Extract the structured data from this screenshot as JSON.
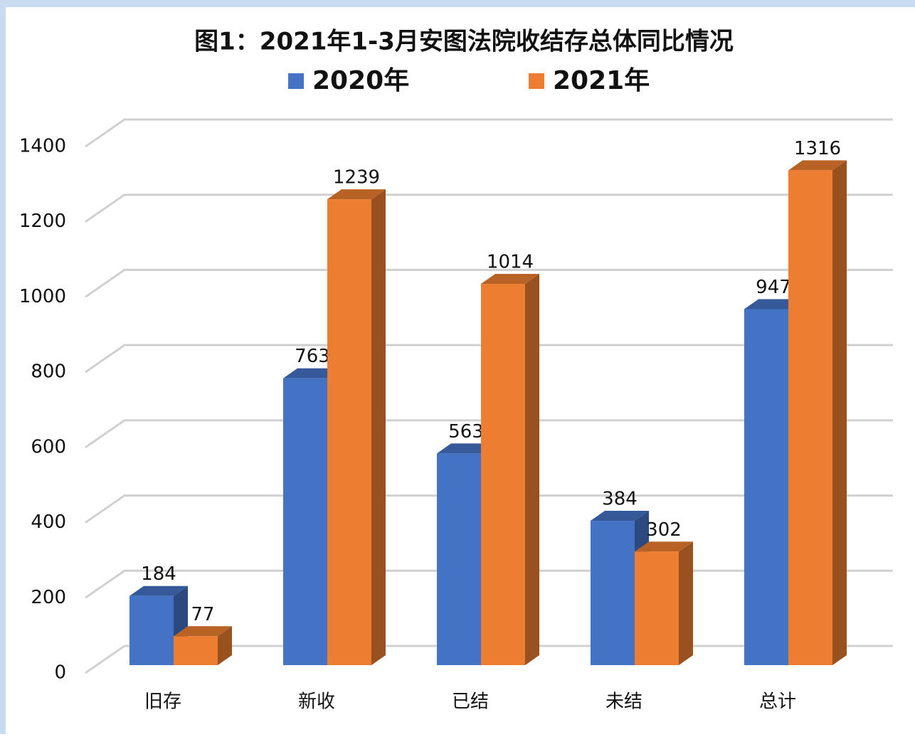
{
  "chart_data": {
    "type": "bar3d",
    "title": "图1：2021年1-3月安图法院收结存总体同比情况",
    "categories": [
      "旧存",
      "新收",
      "已结",
      "未结",
      "总计"
    ],
    "series": [
      {
        "name": "2020年",
        "color": "#4472c4",
        "values": [
          184,
          763,
          563,
          384,
          947
        ]
      },
      {
        "name": "2021年",
        "color": "#ed7d31",
        "values": [
          77,
          1239,
          1014,
          302,
          1316
        ]
      }
    ],
    "ylim": [
      0,
      1400
    ],
    "yticks": [
      0,
      200,
      400,
      600,
      800,
      1000,
      1200,
      1400
    ],
    "grid": true,
    "legend": "top"
  }
}
